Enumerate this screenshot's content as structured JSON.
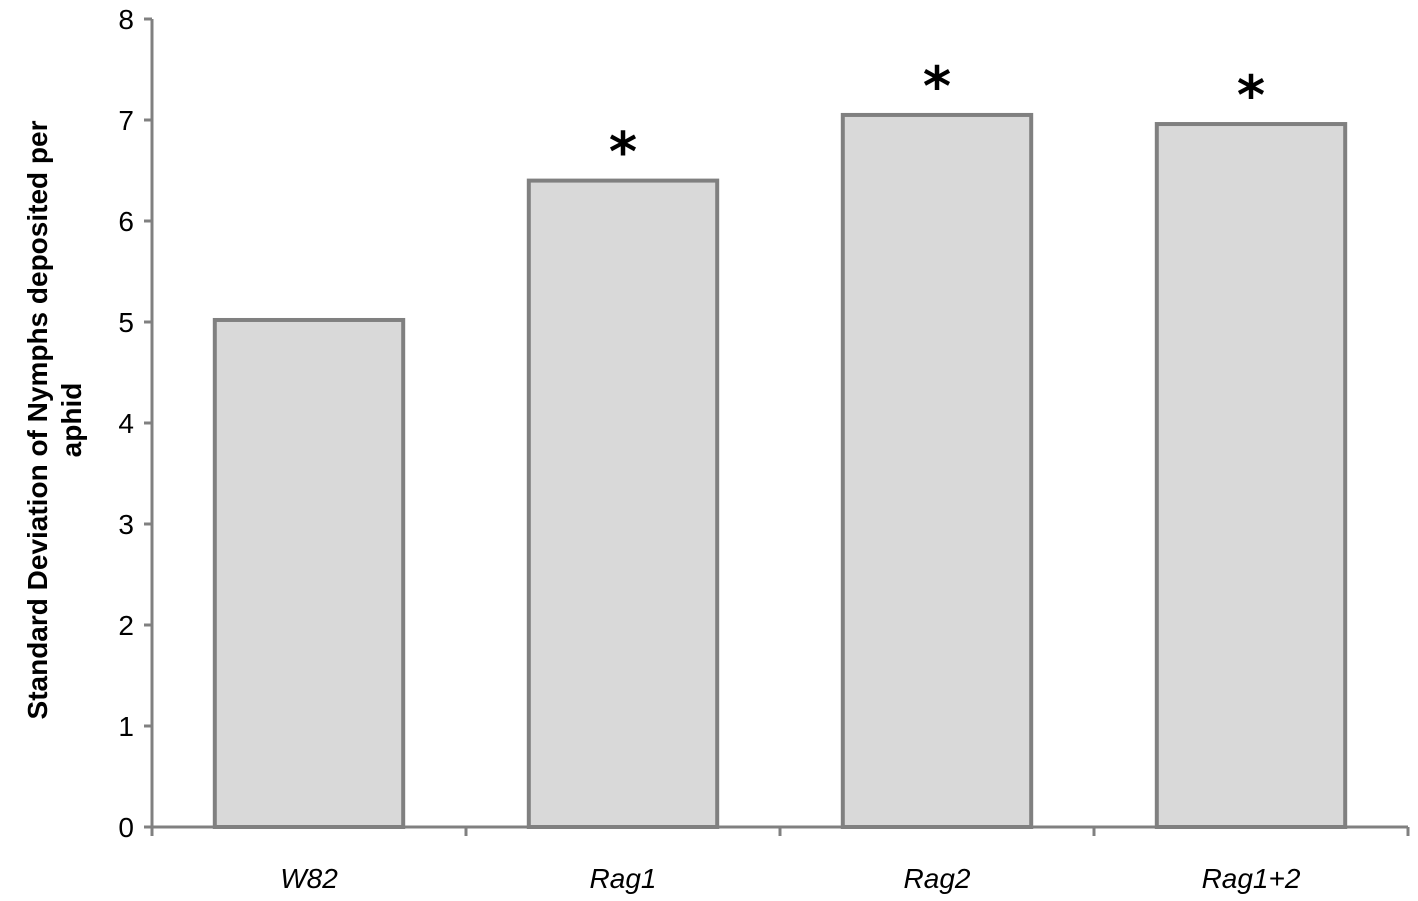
{
  "chart_data": {
    "type": "bar",
    "categories": [
      "W82",
      "Rag1",
      "Rag2",
      "Rag1+2"
    ],
    "values": [
      5.02,
      6.4,
      7.05,
      6.96
    ],
    "significance": [
      "",
      "*",
      "*",
      "*"
    ],
    "ylabel_line1": "Standard Deviation of Nymphs deposited per",
    "ylabel_line2": "aphid",
    "xlabel": "",
    "ylim": [
      0,
      8
    ],
    "yticks": [
      "0",
      "1",
      "2",
      "3",
      "4",
      "5",
      "6",
      "7",
      "8"
    ],
    "grid": false,
    "colors": {
      "bar_fill": "#d9d9d9",
      "bar_stroke": "#808080",
      "axis": "#808080"
    }
  }
}
